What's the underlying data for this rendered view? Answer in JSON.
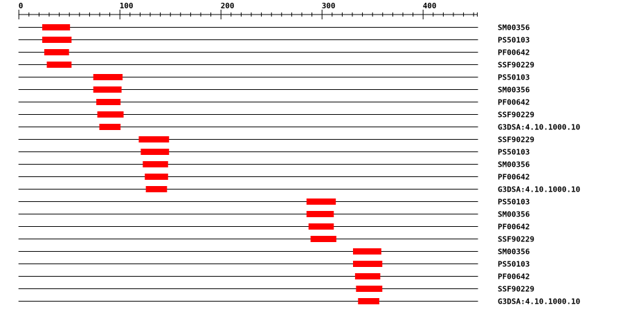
{
  "chart_data": {
    "type": "domain-architecture",
    "xlim": [
      0,
      454
    ],
    "major_ticks": [
      0,
      100,
      200,
      300,
      400
    ],
    "minor_tick_step": 10,
    "tick_labels": [
      "0",
      "100",
      "200",
      "300",
      "400"
    ],
    "bar_color": "#ff0000",
    "tracks": [
      {
        "label": "SM00356",
        "start": 23.5,
        "end": 51
      },
      {
        "label": "PS50103",
        "start": 23.5,
        "end": 52.5
      },
      {
        "label": "PF00642",
        "start": 25.5,
        "end": 50
      },
      {
        "label": "SSF90229",
        "start": 28,
        "end": 52.5
      },
      {
        "label": "PS50103",
        "start": 74,
        "end": 103
      },
      {
        "label": "SM00356",
        "start": 74,
        "end": 102
      },
      {
        "label": "PF00642",
        "start": 77,
        "end": 101
      },
      {
        "label": "SSF90229",
        "start": 78,
        "end": 104
      },
      {
        "label": "G3DSA:4.10.1000.10",
        "start": 80,
        "end": 101
      },
      {
        "label": "SSF90229",
        "start": 119,
        "end": 149
      },
      {
        "label": "PS50103",
        "start": 121,
        "end": 149
      },
      {
        "label": "SM00356",
        "start": 123,
        "end": 148
      },
      {
        "label": "PF00642",
        "start": 125,
        "end": 148
      },
      {
        "label": "G3DSA:4.10.1000.10",
        "start": 126,
        "end": 147
      },
      {
        "label": "PS50103",
        "start": 285,
        "end": 314
      },
      {
        "label": "SM00356",
        "start": 285,
        "end": 312
      },
      {
        "label": "PF00642",
        "start": 287,
        "end": 312
      },
      {
        "label": "SSF90229",
        "start": 289,
        "end": 314.5
      },
      {
        "label": "SM00356",
        "start": 331,
        "end": 359
      },
      {
        "label": "PS50103",
        "start": 331,
        "end": 360
      },
      {
        "label": "PF00642",
        "start": 333,
        "end": 358
      },
      {
        "label": "SSF90229",
        "start": 334,
        "end": 360
      },
      {
        "label": "G3DSA:4.10.1000.10",
        "start": 336,
        "end": 357
      }
    ]
  }
}
